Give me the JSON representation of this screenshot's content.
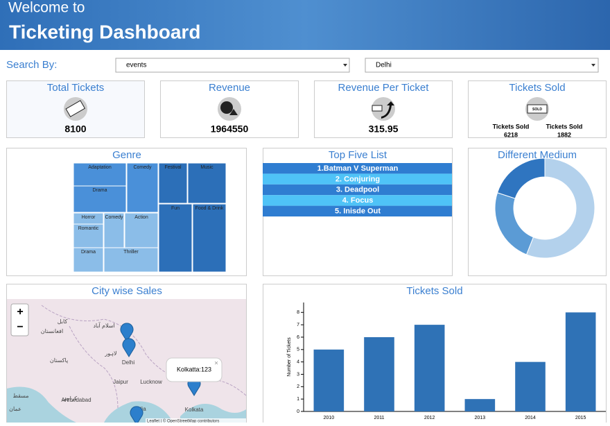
{
  "header": {
    "welcome": "Welcome to",
    "title": "Ticketing Dashboard"
  },
  "search": {
    "label": "Search By:",
    "by": "events",
    "city": "Delhi"
  },
  "kpis": [
    {
      "title": "Total Tickets",
      "value": "8100"
    },
    {
      "title": "Revenue",
      "value": "1964550"
    },
    {
      "title": "Revenue Per Ticket",
      "value": "315.95"
    },
    {
      "title": "Tickets Sold",
      "icon": "SOLD",
      "parts": [
        {
          "label": "Tickets Sold",
          "value": "6218"
        },
        {
          "label": "Tickets Sold",
          "value": "1882"
        }
      ]
    }
  ],
  "genre": {
    "title": "Genre",
    "cells": [
      "Adaptation",
      "Drama",
      "Comedy",
      "Festival",
      "Music",
      "Fun",
      "Food & Drink",
      "Horror",
      "Romantic",
      "Comedy",
      "Action",
      "Drama",
      "Thriller"
    ]
  },
  "top_five": {
    "title": "Top Five List",
    "items": [
      "1.Batman V Superman",
      "2. Conjuring",
      "3. Deadpool",
      "4. Focus",
      "5. Inisde Out"
    ]
  },
  "medium": {
    "title": "Different Medium",
    "chart_data": {
      "type": "donut",
      "values": [
        56,
        24,
        20
      ],
      "colors": [
        "#b3d1ec",
        "#5b9bd5",
        "#2f75c0"
      ]
    }
  },
  "map": {
    "title": "City wise Sales",
    "zoom_in": "+",
    "zoom_out": "−",
    "popup": "Kolkatta:123",
    "close": "×",
    "places": [
      "کابل",
      "اسلام آباد",
      "افغانستان",
      "لاہور",
      "Delhi",
      "پاکستان",
      "Jaipur",
      "Lucknow",
      "کراچی",
      "مسقط",
      "Ahmedabad",
      "India",
      "Kolkata",
      "عمان"
    ],
    "attribution": "Leaflet | © OpenStreetMap contributors"
  },
  "chart_data": {
    "type": "bar",
    "title": "Tickets Sold",
    "ylabel": "Number of Tickets",
    "categories": [
      "2010",
      "2011",
      "2012",
      "2013",
      "2014",
      "2015"
    ],
    "values": [
      5,
      6,
      7,
      1,
      4,
      8
    ],
    "color": "#2f72b6",
    "ylim": [
      0,
      8.8
    ],
    "yticks": [
      0,
      1,
      2,
      3,
      4,
      5,
      6,
      7,
      8
    ]
  }
}
